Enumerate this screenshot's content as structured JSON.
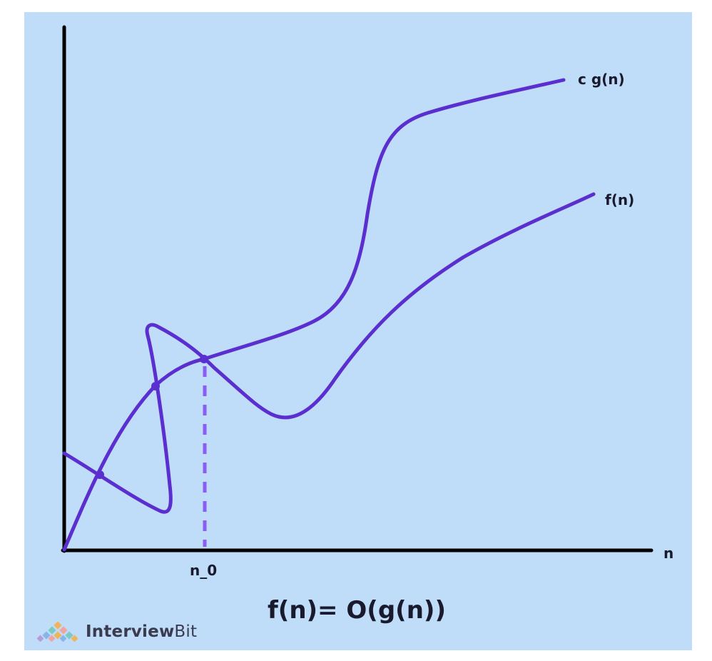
{
  "diagram": {
    "curve_labels": {
      "cg": "c g(n)",
      "f": "f(n)"
    },
    "x_axis_label": "n",
    "threshold_label": "n_0",
    "equation": "f(n)= O(g(n))"
  },
  "brand": {
    "name_strong": "Interview",
    "name_light": "Bit"
  },
  "colors": {
    "background": "#bfdcf8",
    "curve": "#5b2fcf",
    "threshold_line": "#8b5cf6",
    "axes": "#000000"
  }
}
